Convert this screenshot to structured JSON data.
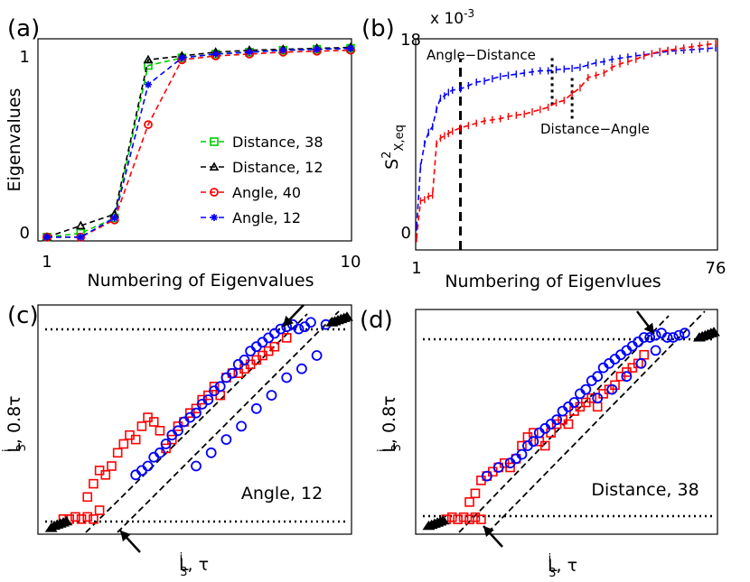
{
  "chart_data": [
    {
      "panel": "(a)",
      "type": "line",
      "xlabel": "Numbering of Eigenvalues",
      "ylabel": "Eigenvalues",
      "xlim": [
        1,
        10
      ],
      "ylim": [
        -0.02,
        1.04
      ],
      "xticks": [
        "1",
        "10"
      ],
      "yticks": [
        "0",
        "1"
      ],
      "grid": false,
      "legend_position": "bottom-right",
      "x": [
        1,
        2,
        3,
        4,
        5,
        6,
        7,
        8,
        9,
        10
      ],
      "series": [
        {
          "name": "Distance, 38",
          "color": "#00cc00",
          "marker": "square",
          "values": [
            0.0,
            0.02,
            0.1,
            0.9,
            0.94,
            0.96,
            0.97,
            0.98,
            0.985,
            0.99
          ]
        },
        {
          "name": "Distance, 12",
          "color": "#000000",
          "marker": "triangle",
          "values": [
            0.0,
            0.06,
            0.12,
            0.93,
            0.95,
            0.97,
            0.98,
            0.985,
            0.99,
            0.995
          ]
        },
        {
          "name": "Angle, 40",
          "color": "#ff0000",
          "marker": "circle",
          "values": [
            0.0,
            0.0,
            0.09,
            0.59,
            0.93,
            0.95,
            0.96,
            0.97,
            0.975,
            0.98
          ]
        },
        {
          "name": "Angle, 12",
          "color": "#0000ff",
          "marker": "star",
          "values": [
            0.0,
            0.0,
            0.1,
            0.8,
            0.94,
            0.96,
            0.97,
            0.98,
            0.985,
            0.99
          ]
        }
      ]
    },
    {
      "panel": "(b)",
      "type": "line",
      "xlabel": "Numbering of Eigenvlues",
      "ylabel": "S^2_{X,eq}",
      "yscale_label": "x 10^-3",
      "xlim": [
        1,
        76
      ],
      "ylim": [
        -0.5,
        18
      ],
      "xticks": [
        "1",
        "76"
      ],
      "yticks": [
        "0",
        "18"
      ],
      "grid": false,
      "annotations": [
        "Angle−Distance",
        "Distance−Angle"
      ],
      "vertical_markers": [
        {
          "x": 12,
          "style": "dashed"
        },
        {
          "x": 35,
          "style": "dotted"
        },
        {
          "x": 40,
          "style": "dotted"
        }
      ],
      "x": [
        1,
        2,
        3,
        4,
        5,
        6,
        7,
        8,
        9,
        10,
        12,
        14,
        16,
        18,
        20,
        22,
        24,
        26,
        28,
        30,
        32,
        34,
        36,
        38,
        40,
        42,
        44,
        46,
        48,
        50,
        52,
        54,
        56,
        58,
        60,
        62,
        64,
        66,
        68,
        70,
        72,
        74,
        76
      ],
      "series": [
        {
          "name": "Angle−Distance",
          "color": "#0000ff",
          "values": [
            1.5,
            6.8,
            8.8,
            9.8,
            10.3,
            11.8,
            12.8,
            13.0,
            13.3,
            13.5,
            13.6,
            13.9,
            14.2,
            14.3,
            14.5,
            14.7,
            14.8,
            14.9,
            15.0,
            15.1,
            15.2,
            15.2,
            15.3,
            15.35,
            15.4,
            15.5,
            15.7,
            15.9,
            16.0,
            16.2,
            16.3,
            16.4,
            16.5,
            16.6,
            16.7,
            16.8,
            16.9,
            16.95,
            17.0,
            17.05,
            17.1,
            17.15,
            17.2
          ]
        },
        {
          "name": "Distance−Angle",
          "color": "#ff0000",
          "values": [
            0.5,
            3.8,
            3.9,
            4.2,
            4.3,
            8.8,
            9.3,
            9.5,
            9.7,
            9.9,
            10.2,
            10.4,
            10.6,
            10.8,
            10.9,
            11.0,
            11.2,
            11.3,
            11.4,
            11.6,
            11.8,
            12.0,
            12.4,
            12.6,
            13.2,
            13.7,
            14.6,
            14.8,
            15.0,
            15.5,
            15.8,
            16.0,
            16.2,
            16.5,
            16.7,
            16.9,
            17.0,
            17.1,
            17.2,
            17.3,
            17.4,
            17.5,
            17.6
          ]
        }
      ]
    },
    {
      "panel": "(c)",
      "type": "scatter",
      "xlabel": "L^i_3, τ",
      "ylabel": "L^i_3, 0.8τ",
      "annotation": "Angle, 12",
      "xlim": [
        0,
        1
      ],
      "ylim": [
        0,
        1
      ],
      "axis_ticks": "none",
      "series": [
        {
          "name": "red squares",
          "color": "#ff0000",
          "marker": "square",
          "x": [
            0.06,
            0.08,
            0.1,
            0.12,
            0.14,
            0.16,
            0.18,
            0.14,
            0.16,
            0.18,
            0.2,
            0.22,
            0.24,
            0.26,
            0.28,
            0.3,
            0.32,
            0.34,
            0.36,
            0.38,
            0.4,
            0.42,
            0.44,
            0.46,
            0.48,
            0.5,
            0.52,
            0.54,
            0.56,
            0.58,
            0.6,
            0.62,
            0.64,
            0.66,
            0.68,
            0.7,
            0.72,
            0.74,
            0.76,
            0.8
          ],
          "y": [
            0.06,
            0.06,
            0.07,
            0.06,
            0.07,
            0.06,
            0.1,
            0.16,
            0.22,
            0.28,
            0.26,
            0.3,
            0.36,
            0.4,
            0.44,
            0.42,
            0.48,
            0.52,
            0.5,
            0.46,
            0.38,
            0.42,
            0.48,
            0.5,
            0.54,
            0.56,
            0.6,
            0.62,
            0.66,
            0.62,
            0.7,
            0.72,
            0.72,
            0.74,
            0.76,
            0.78,
            0.8,
            0.82,
            0.84,
            0.88
          ]
        },
        {
          "name": "blue circles",
          "color": "#0000ff",
          "marker": "circle",
          "x": [
            0.3,
            0.32,
            0.34,
            0.36,
            0.38,
            0.4,
            0.42,
            0.44,
            0.46,
            0.48,
            0.5,
            0.52,
            0.54,
            0.56,
            0.58,
            0.6,
            0.62,
            0.64,
            0.66,
            0.68,
            0.7,
            0.72,
            0.74,
            0.76,
            0.78,
            0.8,
            0.82,
            0.84,
            0.86,
            0.88,
            0.5,
            0.55,
            0.6,
            0.65,
            0.7,
            0.75,
            0.8,
            0.85,
            0.9,
            0.93
          ],
          "y": [
            0.26,
            0.28,
            0.3,
            0.34,
            0.36,
            0.4,
            0.44,
            0.46,
            0.5,
            0.52,
            0.54,
            0.58,
            0.6,
            0.64,
            0.66,
            0.7,
            0.72,
            0.76,
            0.78,
            0.82,
            0.84,
            0.86,
            0.88,
            0.9,
            0.92,
            0.93,
            0.94,
            0.92,
            0.93,
            0.95,
            0.3,
            0.36,
            0.42,
            0.48,
            0.56,
            0.62,
            0.7,
            0.74,
            0.8,
            0.94
          ]
        },
        {
          "name": "black triangles",
          "color": "#000000",
          "marker": "triangle",
          "x": [
            0.02,
            0.03,
            0.04,
            0.05,
            0.06,
            0.07,
            0.95,
            0.96,
            0.97,
            0.98,
            0.99,
            1.0
          ],
          "y": [
            0.02,
            0.03,
            0.035,
            0.04,
            0.045,
            0.05,
            0.95,
            0.955,
            0.96,
            0.965,
            0.97,
            0.975
          ]
        }
      ]
    },
    {
      "panel": "(d)",
      "type": "scatter",
      "xlabel": "L^i_3, τ",
      "ylabel": "L^i_3, 0.8τ",
      "annotation": "Distance, 38",
      "xlim": [
        0,
        1
      ],
      "ylim": [
        0,
        1
      ],
      "axis_ticks": "none",
      "series": [
        {
          "name": "red squares",
          "color": "#ff0000",
          "marker": "square",
          "x": [
            0.08,
            0.1,
            0.12,
            0.14,
            0.16,
            0.18,
            0.2,
            0.16,
            0.18,
            0.2,
            0.22,
            0.24,
            0.26,
            0.28,
            0.3,
            0.32,
            0.34,
            0.36,
            0.38,
            0.4,
            0.42,
            0.44,
            0.46,
            0.48,
            0.5,
            0.52,
            0.54,
            0.56,
            0.58,
            0.6,
            0.62,
            0.64,
            0.66,
            0.68,
            0.7,
            0.72,
            0.74,
            0.76
          ],
          "y": [
            0.06,
            0.07,
            0.06,
            0.07,
            0.06,
            0.07,
            0.06,
            0.14,
            0.18,
            0.24,
            0.26,
            0.28,
            0.3,
            0.32,
            0.3,
            0.34,
            0.4,
            0.44,
            0.46,
            0.42,
            0.4,
            0.46,
            0.5,
            0.52,
            0.5,
            0.56,
            0.58,
            0.6,
            0.62,
            0.58,
            0.64,
            0.66,
            0.68,
            0.72,
            0.74,
            0.76,
            0.78,
            0.82
          ]
        },
        {
          "name": "blue circles",
          "color": "#0000ff",
          "marker": "circle",
          "x": [
            0.22,
            0.26,
            0.3,
            0.32,
            0.34,
            0.36,
            0.38,
            0.4,
            0.42,
            0.44,
            0.46,
            0.48,
            0.5,
            0.52,
            0.54,
            0.56,
            0.58,
            0.6,
            0.62,
            0.64,
            0.66,
            0.68,
            0.7,
            0.72,
            0.74,
            0.76,
            0.78,
            0.8,
            0.82,
            0.84,
            0.86,
            0.88,
            0.9,
            0.6,
            0.65,
            0.7,
            0.75,
            0.8
          ],
          "y": [
            0.26,
            0.3,
            0.32,
            0.34,
            0.36,
            0.4,
            0.42,
            0.46,
            0.48,
            0.5,
            0.52,
            0.56,
            0.58,
            0.6,
            0.64,
            0.66,
            0.7,
            0.72,
            0.76,
            0.78,
            0.8,
            0.82,
            0.84,
            0.86,
            0.88,
            0.9,
            0.9,
            0.91,
            0.92,
            0.9,
            0.9,
            0.91,
            0.92,
            0.62,
            0.66,
            0.72,
            0.78,
            0.84
          ]
        },
        {
          "name": "black triangles",
          "color": "#000000",
          "marker": "triangle",
          "x": [
            0.02,
            0.03,
            0.04,
            0.05,
            0.06,
            0.07,
            0.95,
            0.96,
            0.97,
            0.98,
            0.99,
            1.0
          ],
          "y": [
            0.03,
            0.035,
            0.04,
            0.045,
            0.05,
            0.055,
            0.9,
            0.905,
            0.91,
            0.915,
            0.92,
            0.925
          ]
        }
      ]
    }
  ]
}
